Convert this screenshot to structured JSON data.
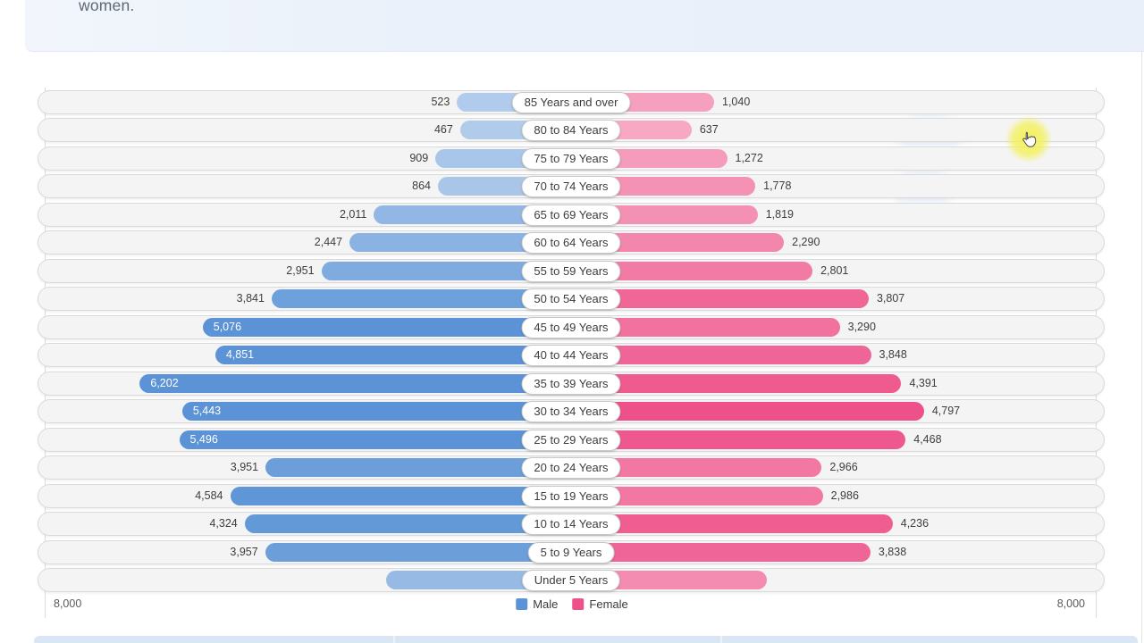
{
  "page": {
    "intro_text_fragment": "women."
  },
  "chart_data": {
    "type": "bar",
    "variant": "population-pyramid",
    "title": "",
    "xlabel": "",
    "ylabel": "",
    "axis_max": 8000,
    "axis_left_label": "8,000",
    "axis_right_label": "8,000",
    "grid": false,
    "legend_position": "bottom-center",
    "legend": [
      {
        "name": "Male",
        "color": "#5b93d6"
      },
      {
        "name": "Female",
        "color": "#ee5189"
      }
    ],
    "categories": [
      "85 Years and over",
      "80 to 84 Years",
      "75 to 79 Years",
      "70 to 74 Years",
      "65 to 69 Years",
      "60 to 64 Years",
      "55 to 59 Years",
      "50 to 54 Years",
      "45 to 49 Years",
      "40 to 44 Years",
      "35 to 39 Years",
      "30 to 34 Years",
      "25 to 29 Years",
      "20 to 24 Years",
      "15 to 19 Years",
      "10 to 14 Years",
      "5 to 9 Years",
      "Under 5 Years"
    ],
    "series": [
      {
        "name": "Male",
        "color": "#5b93d6",
        "values": [
          523,
          467,
          909,
          864,
          2011,
          2447,
          2951,
          3841,
          5076,
          4851,
          6202,
          5443,
          5496,
          3951,
          4584,
          4324,
          3957,
          null
        ],
        "labels": [
          "523",
          "467",
          "909",
          "864",
          "2,011",
          "2,447",
          "2,951",
          "3,841",
          "5,076",
          "4,851",
          "6,202",
          "5,443",
          "5,496",
          "3,951",
          "4,584",
          "4,324",
          "3,957",
          ""
        ]
      },
      {
        "name": "Female",
        "color": "#ee5189",
        "values": [
          1040,
          637,
          1272,
          1778,
          1819,
          2290,
          2801,
          3807,
          3290,
          3848,
          4391,
          4797,
          4468,
          2966,
          2986,
          4236,
          3838,
          null
        ],
        "labels": [
          "1,040",
          "637",
          "1,272",
          "1,778",
          "1,819",
          "2,290",
          "2,801",
          "3,807",
          "3,290",
          "3,848",
          "4,391",
          "4,797",
          "4,468",
          "2,966",
          "2,986",
          "4,236",
          "3,838",
          ""
        ]
      }
    ],
    "under5_visible_bar_est": {
      "male": 1790,
      "female": 1985
    }
  }
}
